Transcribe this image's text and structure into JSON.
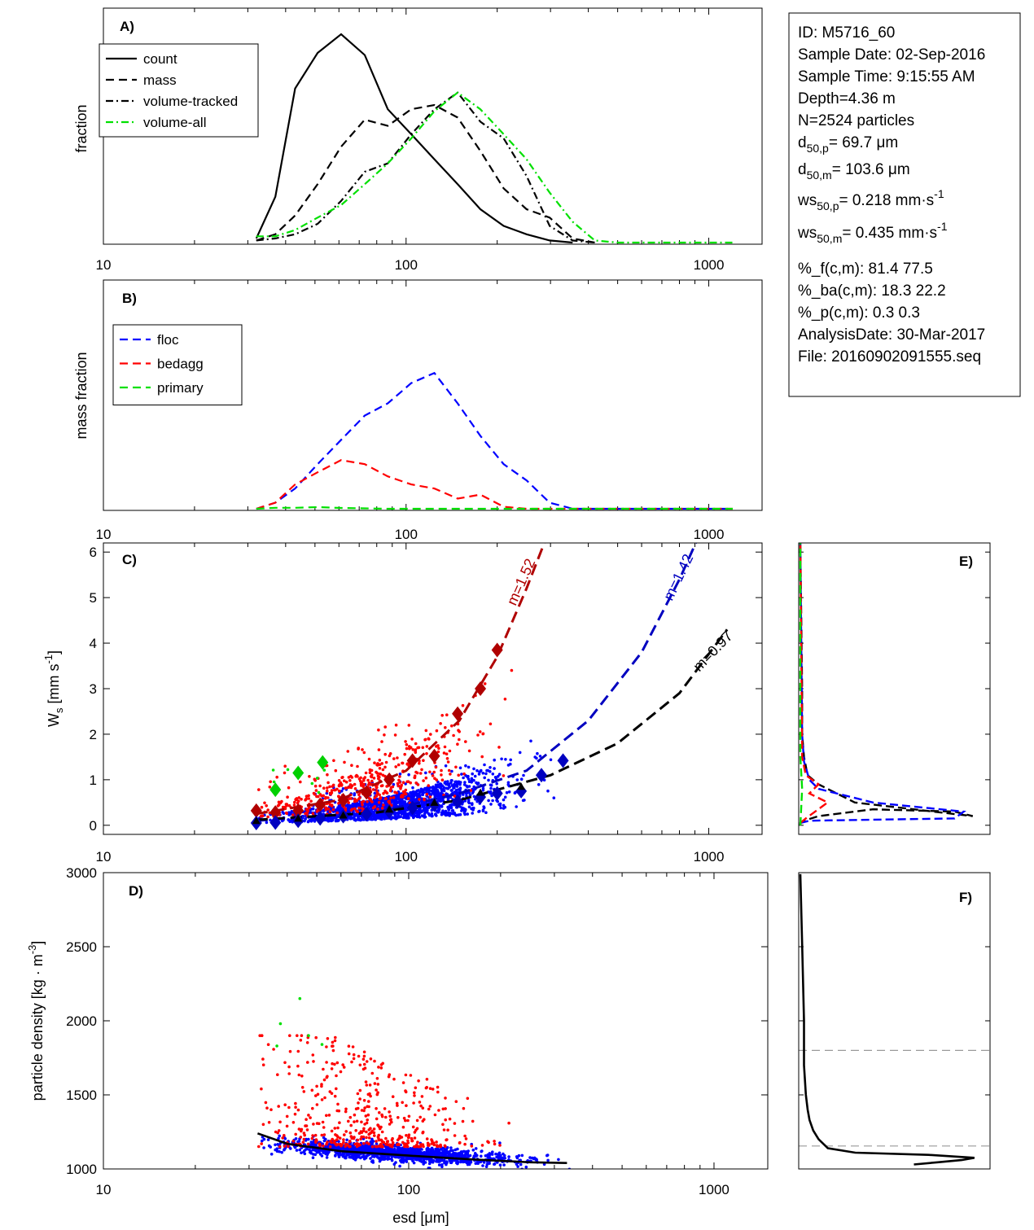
{
  "info_box": {
    "lines": [
      {
        "main": "ID: M5716_60"
      },
      {
        "main": "Sample Date: 02-Sep-2016"
      },
      {
        "main": "Sample Time:  9:15:55 AM"
      },
      {
        "main": "Depth=4.36 m"
      },
      {
        "main": "N=2524 particles"
      },
      {
        "main": "d",
        "sub": "50,p",
        "rest": "=  69.7 μm"
      },
      {
        "main": "d",
        "sub": "50,m",
        "rest": "= 103.6 μm"
      },
      {
        "main": "ws",
        "sub": "50,p",
        "rest": "= 0.218 mm·s",
        "sup": "-1"
      },
      {
        "main": "ws",
        "sub": "50,m",
        "rest": "= 0.435 mm·s",
        "sup": "-1"
      },
      {
        "main": "%_f(c,m): 81.4 77.5"
      },
      {
        "main": "%_ba(c,m): 18.3 22.2"
      },
      {
        "main": "%_p(c,m): 0.3 0.3"
      },
      {
        "main": "AnalysisDate: 30-Mar-2017"
      },
      {
        "main": "File: 20160902091555.seq"
      }
    ]
  },
  "chart_data": [
    {
      "panel": "A)",
      "type": "line",
      "xscale": "log",
      "xlim": [
        10,
        1500
      ],
      "ylabel": "fraction",
      "xticks": [
        "10",
        "100",
        "1000"
      ],
      "legend": "top-left",
      "series": [
        {
          "name": "count",
          "style": "solid",
          "color": "#000000",
          "x": [
            32,
            37,
            43,
            51,
            61,
            73,
            87,
            104,
            124,
            148,
            176,
            210,
            250,
            298,
            355
          ],
          "y": [
            0.02,
            0.22,
            0.74,
            0.91,
            1.0,
            0.9,
            0.64,
            0.52,
            0.4,
            0.28,
            0.16,
            0.08,
            0.04,
            0.01,
            0.0
          ]
        },
        {
          "name": "mass",
          "style": "dashed",
          "color": "#000000",
          "x": [
            32,
            37,
            43,
            51,
            61,
            73,
            87,
            104,
            124,
            148,
            176,
            210,
            250,
            298,
            355,
            420
          ],
          "y": [
            0.01,
            0.04,
            0.13,
            0.28,
            0.46,
            0.59,
            0.56,
            0.64,
            0.66,
            0.6,
            0.44,
            0.26,
            0.16,
            0.12,
            0.02,
            0.0
          ]
        },
        {
          "name": "volume-tracked",
          "style": "dashdot",
          "color": "#000000",
          "x": [
            32,
            37,
            43,
            51,
            61,
            73,
            87,
            104,
            124,
            148,
            176,
            210,
            250,
            298,
            355,
            420
          ],
          "y": [
            0.01,
            0.02,
            0.04,
            0.09,
            0.2,
            0.34,
            0.38,
            0.52,
            0.64,
            0.72,
            0.58,
            0.5,
            0.32,
            0.08,
            0.01,
            0.0
          ]
        },
        {
          "name": "volume-all",
          "style": "dashdot",
          "color": "#00e000",
          "x": [
            32,
            37,
            43,
            51,
            61,
            73,
            87,
            104,
            124,
            148,
            176,
            210,
            250,
            298,
            355,
            420,
            500,
            600,
            720,
            860,
            1030,
            1200
          ],
          "y": [
            0.03,
            0.03,
            0.06,
            0.12,
            0.18,
            0.28,
            0.38,
            0.5,
            0.63,
            0.72,
            0.64,
            0.52,
            0.4,
            0.24,
            0.1,
            0.01,
            0.0,
            0.0,
            0.0,
            0.0,
            0.0,
            0.0
          ]
        }
      ]
    },
    {
      "panel": "B)",
      "type": "line",
      "xscale": "log",
      "xlim": [
        10,
        1500
      ],
      "ylabel": "mass fraction",
      "xticks": [
        "10",
        "100",
        "1000"
      ],
      "legend": "top-left",
      "series": [
        {
          "name": "floc",
          "style": "dashed",
          "color": "#0000ff",
          "x": [
            32,
            37,
            43,
            51,
            61,
            73,
            87,
            104,
            124,
            148,
            176,
            210,
            250,
            298,
            355,
            420,
            500,
            600,
            720,
            860,
            1030,
            1200
          ],
          "y": [
            0.0,
            0.03,
            0.1,
            0.22,
            0.34,
            0.46,
            0.52,
            0.62,
            0.67,
            0.52,
            0.36,
            0.22,
            0.14,
            0.03,
            0.0,
            0.0,
            0.0,
            0.0,
            0.0,
            0.0,
            0.0,
            0.0
          ]
        },
        {
          "name": "bedagg",
          "style": "dashed",
          "color": "#ff0000",
          "x": [
            32,
            37,
            43,
            51,
            61,
            73,
            87,
            104,
            124,
            148,
            176,
            210,
            250,
            298,
            355,
            420,
            500,
            600,
            720,
            860,
            1030,
            1200
          ],
          "y": [
            0.0,
            0.03,
            0.12,
            0.18,
            0.24,
            0.22,
            0.16,
            0.12,
            0.1,
            0.05,
            0.07,
            0.01,
            0.0,
            0.0,
            0.0,
            0.0,
            0.0,
            0.0,
            0.0,
            0.0,
            0.0,
            0.0
          ]
        },
        {
          "name": "primary",
          "style": "dashed",
          "color": "#00e000",
          "x": [
            32,
            37,
            43,
            51,
            61,
            73,
            87,
            104,
            124,
            148,
            176,
            210,
            250,
            298,
            355,
            420,
            500,
            600,
            720,
            860,
            1030,
            1200
          ],
          "y": [
            0.0,
            0.005,
            0.005,
            0.008,
            0.004,
            0.002,
            0.0,
            0.0,
            0.0,
            0.0,
            0.0,
            0.0,
            0.0,
            0.0,
            0.0,
            0.0,
            0.0,
            0.0,
            0.0,
            0.0,
            0.0,
            0.0
          ]
        }
      ]
    },
    {
      "panel": "C)",
      "type": "scatter",
      "xscale": "log",
      "xlim": [
        10,
        1500
      ],
      "ylim": [
        -0.2,
        6.2
      ],
      "ylabel": "W",
      "ylabel_sub": "s",
      "ylabel_rest": " [mm s",
      "ylabel_sup": "-1",
      "ylabel_end": "]",
      "yticks": [
        "0",
        "1",
        "2",
        "3",
        "4",
        "5",
        "6"
      ],
      "xticks": [
        "10",
        "100",
        "1000"
      ],
      "fit_lines": [
        {
          "label": "m=1.52",
          "color": "#b00000",
          "x": [
            32,
            60,
            100,
            150,
            200,
            250,
            290
          ],
          "y": [
            0.25,
            0.55,
            1.2,
            2.3,
            3.7,
            5.2,
            6.3
          ]
        },
        {
          "label": "m=1.42",
          "color": "#0000c0",
          "x": [
            32,
            80,
            150,
            250,
            400,
            600,
            800,
            920
          ],
          "y": [
            0.1,
            0.28,
            0.7,
            1.2,
            2.3,
            3.8,
            5.4,
            6.3
          ]
        },
        {
          "label": "m=0.97",
          "color": "#000000",
          "x": [
            32,
            80,
            150,
            300,
            500,
            800,
            1150
          ],
          "y": [
            0.12,
            0.28,
            0.55,
            1.1,
            1.8,
            2.9,
            4.3
          ]
        }
      ],
      "binned_means": [
        {
          "name": "bedagg",
          "color": "#b00000",
          "x": [
            32,
            37,
            44,
            52,
            62,
            74,
            88,
            105,
            124,
            148,
            176,
            200
          ],
          "y": [
            0.32,
            0.28,
            0.32,
            0.45,
            0.55,
            0.72,
            1.0,
            1.42,
            1.52,
            2.45,
            3.0,
            3.85
          ]
        },
        {
          "name": "primary",
          "color": "#00d000",
          "x": [
            37,
            44,
            53
          ],
          "y": [
            0.78,
            1.15,
            1.38
          ]
        },
        {
          "name": "floc",
          "color": "#0000c0",
          "x": [
            32,
            37,
            44,
            52,
            62,
            74,
            88,
            105,
            124,
            148,
            176,
            200,
            240,
            280,
            330
          ],
          "y": [
            0.05,
            0.06,
            0.1,
            0.15,
            0.2,
            0.25,
            0.3,
            0.38,
            0.45,
            0.52,
            0.62,
            0.7,
            0.75,
            1.1,
            1.42
          ]
        },
        {
          "name": "all",
          "color": "#000000",
          "x": [
            32,
            44,
            62,
            88,
            124,
            176,
            240
          ],
          "y": [
            0.1,
            0.15,
            0.22,
            0.35,
            0.5,
            0.72,
            0.85
          ]
        }
      ],
      "scatter_clouds": [
        {
          "name": "floc points",
          "color": "#0000ff"
        },
        {
          "name": "bedagg points",
          "color": "#ff0000"
        },
        {
          "name": "primary points",
          "color": "#00e000"
        }
      ]
    },
    {
      "panel": "D)",
      "type": "scatter",
      "xscale": "log",
      "xlim": [
        10,
        1500
      ],
      "ylim": [
        1000,
        3000
      ],
      "xlabel": "esd [μm]",
      "ylabel": "particle density [kg · m",
      "ylabel_sup": "-3",
      "ylabel_end": "]",
      "yticks": [
        "1000",
        "1500",
        "2000",
        "2500",
        "3000"
      ],
      "xticks": [
        "10",
        "100",
        "1000"
      ],
      "fit_line": {
        "color": "#000000",
        "x": [
          32,
          40,
          60,
          100,
          160,
          250,
          330
        ],
        "y": [
          1240,
          1170,
          1120,
          1090,
          1065,
          1045,
          1040
        ]
      }
    },
    {
      "panel": "E)",
      "type": "line",
      "ylim": [
        -0.2,
        6.2
      ],
      "series": [
        {
          "name": "black",
          "color": "#000000",
          "x": [
            0.0,
            0.0,
            0.02,
            0.1,
            0.4,
            0.85,
            0.95,
            0.3,
            0.1,
            0.04,
            0.02,
            0.01,
            0.01,
            0.0
          ],
          "y": [
            0.0,
            0.05,
            0.1,
            0.2,
            0.35,
            0.3,
            0.2,
            0.5,
            0.9,
            1.1,
            1.5,
            2.0,
            3.0,
            6.2
          ]
        },
        {
          "name": "blue",
          "color": "#0000ff",
          "x": [
            0.0,
            0.05,
            0.85,
            0.9,
            0.4,
            0.1,
            0.05,
            0.02,
            0.01,
            0.0
          ],
          "y": [
            0.05,
            0.1,
            0.15,
            0.3,
            0.5,
            0.8,
            1.0,
            1.4,
            2.0,
            6.2
          ]
        },
        {
          "name": "red",
          "color": "#ff0000",
          "x": [
            0.0,
            0.03,
            0.15,
            0.05,
            0.1,
            0.03,
            0.01,
            0.0
          ],
          "y": [
            0.05,
            0.15,
            0.5,
            0.7,
            0.9,
            1.1,
            1.5,
            6.2
          ]
        },
        {
          "name": "green",
          "color": "#00e000",
          "x": [
            0.0,
            0.01,
            0.0,
            0.0
          ],
          "y": [
            0.0,
            0.8,
            1.5,
            6.2
          ]
        }
      ]
    },
    {
      "panel": "F)",
      "type": "line",
      "ylim": [
        1000,
        3000
      ],
      "hlines": [
        1155,
        1800
      ],
      "series": [
        {
          "name": "density distribution",
          "color": "#000000",
          "x": [
            0.62,
            0.75,
            0.88,
            0.95,
            0.7,
            0.3,
            0.15,
            0.1,
            0.07,
            0.05,
            0.04,
            0.03,
            0.02,
            0.02,
            0.01,
            0.0
          ],
          "y": [
            1030,
            1045,
            1060,
            1075,
            1095,
            1110,
            1140,
            1200,
            1260,
            1330,
            1400,
            1500,
            1700,
            2000,
            2500,
            2990
          ]
        }
      ]
    }
  ]
}
